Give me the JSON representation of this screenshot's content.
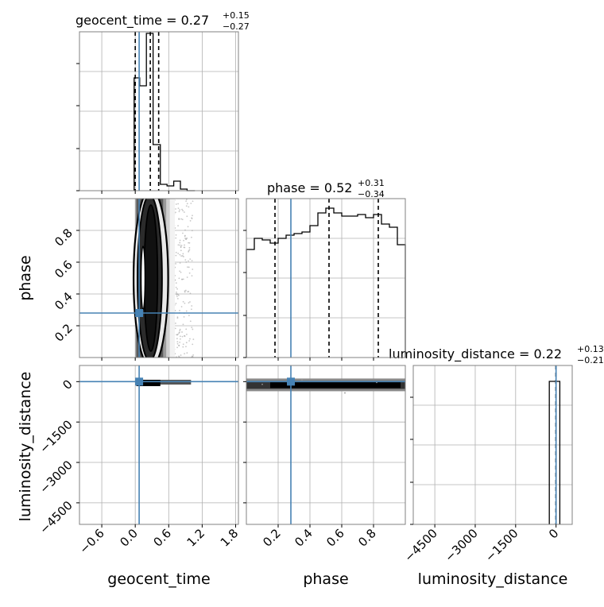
{
  "chart_data": {
    "type": "corner",
    "parameters": [
      "geocent_time",
      "phase",
      "luminosity_distance"
    ],
    "truth": {
      "geocent_time": 0.07,
      "phase": 0.28,
      "luminosity_distance": 0
    },
    "truth_color": "#4682b4",
    "panels": {
      "geocent_time_hist": {
        "title": "geocent_time = 0.27",
        "title_sup": "+0.15",
        "title_sub": "−0.27",
        "xlim": [
          -1.0,
          1.85
        ],
        "grid": true,
        "bin_edges": [
          -0.02,
          0.08,
          0.2,
          0.32,
          0.45,
          0.57,
          0.69,
          0.81,
          0.93,
          1.07
        ],
        "heights": [
          0.71,
          0.66,
          0.99,
          0.29,
          0.04,
          0.03,
          0.06,
          0.01,
          0.0
        ],
        "quantiles": [
          0.0,
          0.27,
          0.42
        ]
      },
      "phase_hist": {
        "title": "phase = 0.52",
        "title_sup": "+0.31",
        "title_sub": "−0.34",
        "xlim": [
          0.0,
          1.0
        ],
        "grid": true,
        "bin_edges": [
          0.0,
          0.05,
          0.1,
          0.15,
          0.2,
          0.25,
          0.3,
          0.35,
          0.4,
          0.45,
          0.5,
          0.55,
          0.6,
          0.65,
          0.7,
          0.75,
          0.8,
          0.85,
          0.9,
          0.95,
          1.0
        ],
        "heights": [
          0.68,
          0.75,
          0.74,
          0.72,
          0.75,
          0.77,
          0.78,
          0.79,
          0.83,
          0.91,
          0.94,
          0.91,
          0.89,
          0.89,
          0.9,
          0.88,
          0.9,
          0.84,
          0.82,
          0.71
        ],
        "quantiles": [
          0.18,
          0.52,
          0.83
        ]
      },
      "luminosity_distance_hist": {
        "title": "luminosity_distance = 0.22",
        "title_sup": "+0.13",
        "title_sub": "−0.21",
        "xlim": [
          -5300,
          600
        ],
        "grid": true,
        "bin_edges": [
          -250,
          -120,
          10,
          140
        ],
        "heights": [
          0.9,
          0.9,
          0.9
        ],
        "quantiles": [
          0,
          0.22,
          0.35
        ]
      },
      "phase_vs_geocent_time": {
        "xlim": [
          -1.0,
          1.85
        ],
        "ylim": [
          0.0,
          1.0
        ],
        "grid": true
      },
      "luminosity_distance_vs_geocent_time": {
        "xlim": [
          -1.0,
          1.85
        ],
        "ylim": [
          -5300,
          600
        ],
        "grid": true
      },
      "luminosity_distance_vs_phase": {
        "xlim": [
          0.0,
          1.0
        ],
        "ylim": [
          -5300,
          600
        ],
        "grid": true
      }
    },
    "ticks": {
      "geocent_time": [
        "−0.6",
        "0.0",
        "0.6",
        "1.2",
        "1.8"
      ],
      "geocent_time_values": [
        -0.6,
        0.0,
        0.6,
        1.2,
        1.8
      ],
      "phase": [
        "0.2",
        "0.4",
        "0.6",
        "0.8"
      ],
      "phase_values": [
        0.2,
        0.4,
        0.6,
        0.8
      ],
      "luminosity_distance": [
        "−4500",
        "−3000",
        "−1500",
        "0"
      ],
      "luminosity_distance_values": [
        -4500,
        -3000,
        -1500,
        0
      ]
    },
    "axis_labels": {
      "x": [
        "geocent_time",
        "phase",
        "luminosity_distance"
      ],
      "y": [
        "phase",
        "luminosity_distance"
      ]
    }
  }
}
